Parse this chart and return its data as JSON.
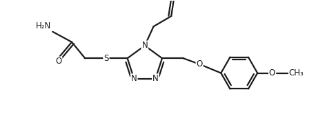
{
  "bg_color": "#ffffff",
  "line_color": "#1a1a1a",
  "line_width": 1.6,
  "font_size": 8.5,
  "figsize": [
    4.58,
    1.72
  ],
  "dpi": 100,
  "xlim": [
    0,
    10.5
  ],
  "ylim": [
    0,
    4.0
  ]
}
